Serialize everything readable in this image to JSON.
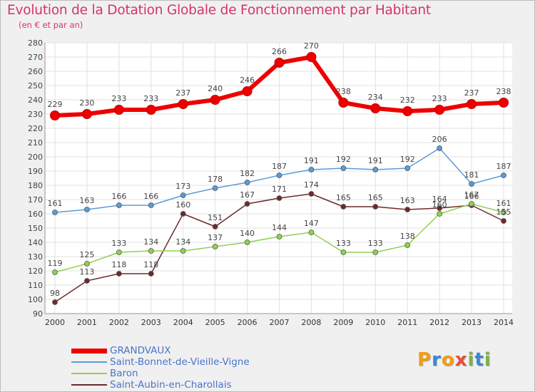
{
  "page": {
    "title": "Evolution de la Dotation Globale de Fonctionnement par Habitant",
    "subtitle": "(en € et par an)",
    "brand": {
      "letters": [
        "P",
        "r",
        "o",
        "x",
        "i",
        "t",
        "i"
      ],
      "colors": [
        "#f39c12",
        "#3a86d4",
        "#f39c12",
        "#e74c3c",
        "#7cb342",
        "#3a86d4",
        "#7cb342"
      ]
    }
  },
  "chart_data": {
    "type": "line",
    "title": "Evolution de la Dotation Globale de Fonctionnement par Habitant",
    "subtitle": "(en € et par an)",
    "xlabel": "",
    "ylabel": "",
    "ylim": [
      90,
      280
    ],
    "ytick_step": 10,
    "grid": true,
    "legend_position": "bottom-left",
    "x": [
      "2000",
      "2001",
      "2002",
      "2003",
      "2004",
      "2005",
      "2006",
      "2007",
      "2008",
      "2009",
      "2010",
      "2011",
      "2012",
      "2013",
      "2014"
    ],
    "series": [
      {
        "name": "GRANDVAUX",
        "color": "#ee0000",
        "values": [
          229,
          230,
          233,
          233,
          237,
          240,
          246,
          266,
          270,
          238,
          234,
          232,
          233,
          237,
          238
        ],
        "labels": [
          "229",
          "230",
          "233",
          "233",
          "237",
          "240",
          "246",
          "266",
          "270",
          "238",
          "234",
          "232",
          "233",
          "237",
          "238"
        ]
      },
      {
        "name": "Saint-Bonnet-de-Vieille-Vigne",
        "color": "#5b9bd5",
        "values": [
          161,
          163,
          166,
          166,
          173,
          178,
          182,
          187,
          191,
          192,
          191,
          192,
          206,
          181,
          187
        ],
        "labels": [
          "161",
          "163",
          "166",
          "166",
          "173",
          "178",
          "182",
          "187",
          "191",
          "192",
          "191",
          "192",
          "206",
          "181",
          "187"
        ]
      },
      {
        "name": "Baron",
        "color": "#92d050",
        "values": [
          119,
          125,
          133,
          134,
          134,
          137,
          140,
          144,
          147,
          133,
          133,
          138,
          160,
          167,
          161
        ],
        "labels": [
          "119",
          "125",
          "133",
          "134",
          "134",
          "137",
          "140",
          "144",
          "147",
          "133",
          "133",
          "138",
          "160",
          "167",
          "161"
        ]
      },
      {
        "name": "Saint-Aubin-en-Charollais",
        "color": "#6d2a2a",
        "values": [
          98,
          113,
          118,
          118,
          160,
          151,
          167,
          171,
          174,
          165,
          165,
          163,
          164,
          166,
          155
        ],
        "labels": [
          "98",
          "113",
          "118",
          "118",
          "160",
          "151",
          "167",
          "171",
          "174",
          "165",
          "165",
          "163",
          "164",
          "166",
          "155"
        ]
      }
    ]
  }
}
